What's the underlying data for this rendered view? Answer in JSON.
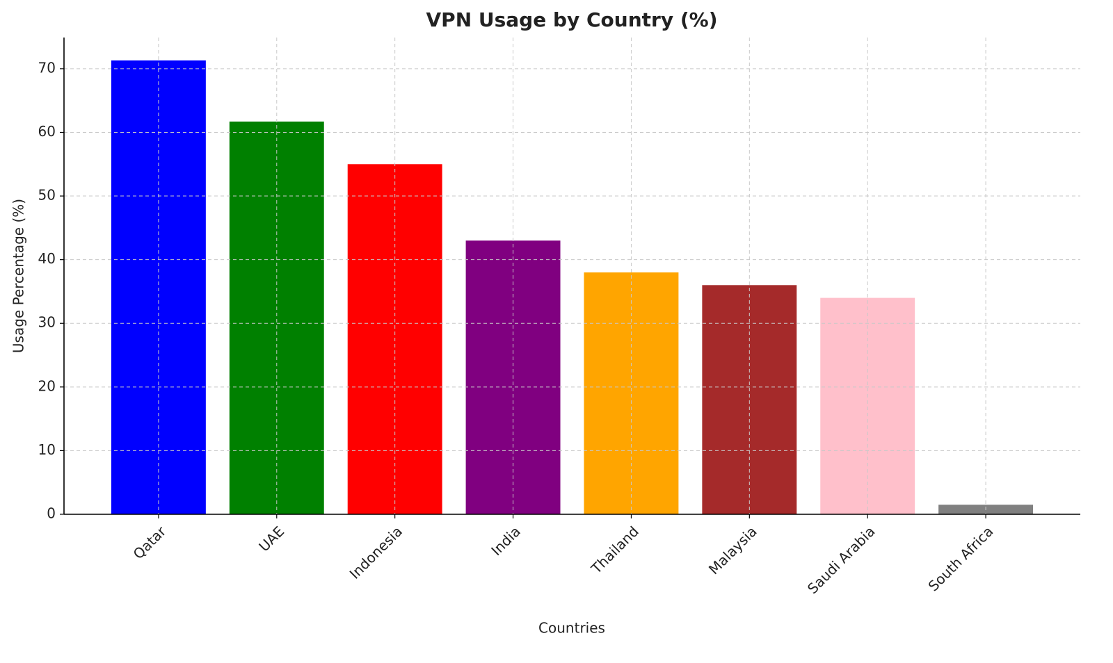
{
  "chart_data": {
    "type": "bar",
    "title": "VPN Usage by Country (%)",
    "x_label": "Countries",
    "y_label": "Usage Percentage (%)",
    "categories": [
      "Qatar",
      "UAE",
      "Indonesia",
      "India",
      "Thailand",
      "Malaysia",
      "Saudi Arabia",
      "South Africa"
    ],
    "values": [
      71.3,
      61.7,
      55,
      43,
      38,
      36,
      34,
      1.5
    ],
    "colors": [
      "#0000ff",
      "#008000",
      "#ff0000",
      "#800080",
      "#ffa500",
      "#a52a2a",
      "#ffc0cb",
      "#808080"
    ],
    "ylim": [
      0,
      74.9
    ],
    "yticks": [
      0,
      10,
      20,
      30,
      40,
      50,
      60,
      70
    ],
    "grid": true
  }
}
